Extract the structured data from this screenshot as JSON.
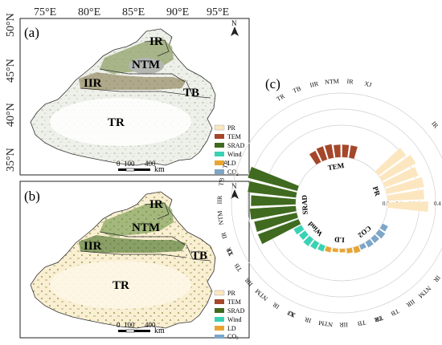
{
  "panels": [
    {
      "label": "(a)",
      "regions": [
        "IR",
        "NTM",
        "IIR",
        "TB",
        "TR"
      ]
    },
    {
      "label": "(b)",
      "regions": [
        "IR",
        "NTM",
        "IIR",
        "TB",
        "TR"
      ]
    },
    {
      "label": "(c)"
    }
  ],
  "map": {
    "longitudes": [
      "75°E",
      "80°E",
      "85°E",
      "90°E",
      "95°E"
    ],
    "latitudes": [
      "50°N",
      "45°N",
      "40°N",
      "35°N"
    ],
    "north_arrow": "N",
    "scale_bar": {
      "ticks": [
        "0",
        "100",
        "400"
      ],
      "unit": "km"
    }
  },
  "legend": {
    "items": [
      {
        "label": "PR",
        "color": "#fbe6bf"
      },
      {
        "label": "TEM",
        "color": "#a5472a"
      },
      {
        "label": "SRAD",
        "color": "#3f6a1f"
      },
      {
        "label": "Wind",
        "color": "#39d2b4"
      },
      {
        "label": "LD",
        "color": "#e8a534"
      },
      {
        "label": "CO",
        "sub": "2",
        "color": "#7ea6c7"
      }
    ]
  },
  "chart_data": {
    "type": "radial-bar",
    "radial_axis": {
      "ticks": [
        "0.0",
        "0.1",
        "0.2",
        "0.3",
        "0.4",
        "0.5"
      ],
      "range": [
        0,
        0.5
      ]
    },
    "groups": [
      {
        "name": "PR",
        "color": "#fbe6bf",
        "regions": [
          "IR",
          "TB",
          "IIR",
          "NTM",
          "IR",
          "XJ"
        ],
        "values": [
          0.27,
          0.3,
          0.28,
          0.3,
          0.29,
          0.32
        ]
      },
      {
        "name": "CO2",
        "color": "#7ea6c7",
        "regions": [
          "XJ",
          "IR",
          "NTM",
          "IIR",
          "TB",
          "TR"
        ],
        "values": [
          0.05,
          0.06,
          0.05,
          0.05,
          0.04,
          0.04
        ]
      },
      {
        "name": "LD",
        "color": "#e8a534",
        "regions": [
          "TR",
          "TB",
          "IIR",
          "NTM",
          "IR",
          "XJ"
        ],
        "values": [
          0.05,
          0.04,
          0.03,
          0.03,
          0.04,
          0.05
        ]
      },
      {
        "name": "Wind",
        "color": "#39d2b4",
        "regions": [
          "XJ",
          "IR",
          "NTM",
          "IIR",
          "TB",
          "TR"
        ],
        "values": [
          0.05,
          0.06,
          0.07,
          0.06,
          0.07,
          0.08
        ]
      },
      {
        "name": "SRAD",
        "color": "#3f6a1f",
        "regions": [
          "XJ",
          "IR",
          "NTM",
          "IIR",
          "TB",
          "TR"
        ],
        "values": [
          0.34,
          0.34,
          0.36,
          0.35,
          0.38,
          0.4
        ]
      },
      {
        "name": "TEM",
        "color": "#a5472a",
        "regions": [
          "TR",
          "TB",
          "IIR",
          "NTM",
          "IR",
          "XJ"
        ],
        "values": [
          0.1,
          0.11,
          0.11,
          0.1,
          0.1,
          0.1
        ]
      }
    ]
  }
}
